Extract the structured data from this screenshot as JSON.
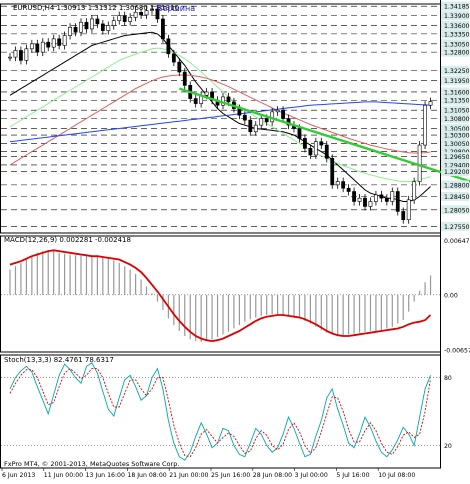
{
  "symbol_header": "EURUSD,H4 1.30913 1.31312 1.30680 1.31310",
  "peak_annotation": "Вершина",
  "copyright": "FxPro MT4, © 2001-2013, MetaQuotes Software Corp.",
  "colors": {
    "grid": "#000000",
    "candle": "#000000",
    "ma_black": "#000000",
    "ma_green": "#90ee90",
    "ma_red": "#e06060",
    "ma_blue": "#2244ff",
    "trendline": "#33cc33",
    "macd_signal": "#dd0000",
    "macd_hist": "#999999",
    "stoch_main": "#00aaaa",
    "stoch_signal": "#dd0000",
    "price_box_bg": "#d8ecec",
    "peak_text": "#2222cc"
  },
  "chart_data": [
    {
      "type": "candlestick",
      "title": "EURUSD,H4 1.30913 1.31312 1.30680 1.31310",
      "ylim": [
        1.2735,
        1.3425
      ],
      "price_labels": [
        "1.34185",
        "1.33900",
        "1.33600",
        "1.33350",
        "1.33050",
        "1.32800",
        "1.32250",
        "1.31950",
        "1.31600",
        "1.31350",
        "1.31050",
        "1.30800",
        "1.30500",
        "1.30300",
        "1.30050",
        "1.29800",
        "1.29650",
        "1.29400",
        "1.29200",
        "1.28800",
        "1.28450",
        "1.28050",
        "1.27550"
      ],
      "x_labels": [
        "6 Jun 2013",
        "11 Jun 00:00",
        "13 Jun 16:00",
        "18 Jun 08:00",
        "21 Jun 00:00",
        "25 Jun 16:00",
        "28 Jun 08:00",
        "3 Jul 00:00",
        "5 Jul 16:00",
        "10 Jul 08:00"
      ],
      "close": [
        1.3265,
        1.3285,
        1.3255,
        1.329,
        1.3305,
        1.328,
        1.331,
        1.3295,
        1.332,
        1.33,
        1.333,
        1.3355,
        1.334,
        1.337,
        1.335,
        1.338,
        1.3365,
        1.3345,
        1.336,
        1.3375,
        1.339,
        1.3372,
        1.3385,
        1.34,
        1.3392,
        1.3405,
        1.341,
        1.338,
        1.332,
        1.3275,
        1.325,
        1.322,
        1.318,
        1.314,
        1.3125,
        1.315,
        1.316,
        1.3135,
        1.312,
        1.3145,
        1.313,
        1.311,
        1.309,
        1.3075,
        1.304,
        1.306,
        1.308,
        1.307,
        1.31,
        1.3105,
        1.308,
        1.306,
        1.305,
        1.302,
        1.299,
        1.297,
        1.301,
        1.3,
        1.296,
        1.288,
        1.289,
        1.287,
        1.286,
        1.283,
        1.284,
        1.2815,
        1.283,
        1.285,
        1.284,
        1.283,
        1.286,
        1.28,
        1.2775,
        1.2835,
        1.289,
        1.3,
        1.312,
        1.3131
      ],
      "series": [
        {
          "name": "MA",
          "values": [
            1.315,
            1.316,
            1.317,
            1.318,
            1.319,
            1.32,
            1.321,
            1.322,
            1.323,
            1.324,
            1.325,
            1.326,
            1.327,
            1.328,
            1.329,
            1.33,
            1.3305,
            1.331,
            1.3315,
            1.332,
            1.3325,
            1.333,
            1.3332,
            1.3334,
            1.3336,
            1.3338,
            1.334,
            1.3335,
            1.332,
            1.33,
            1.328,
            1.326,
            1.324,
            1.3215,
            1.319,
            1.317,
            1.315,
            1.313,
            1.311,
            1.3095,
            1.3085,
            1.3075,
            1.3065,
            1.306,
            1.3055,
            1.305,
            1.3048,
            1.3046,
            1.3044,
            1.3042,
            1.304,
            1.3035,
            1.303,
            1.302,
            1.301,
            1.3,
            1.299,
            1.298,
            1.297,
            1.2955,
            1.294,
            1.2925,
            1.291,
            1.2895,
            1.288,
            1.2865,
            1.2855,
            1.285,
            1.2845,
            1.284,
            1.284,
            1.2835,
            1.283,
            1.283,
            1.2835,
            1.2845,
            1.286,
            1.2875
          ]
        },
        {
          "name": "MA",
          "values": [
            1.3055,
            1.3065,
            1.3075,
            1.3085,
            1.3095,
            1.3105,
            1.3115,
            1.3125,
            1.3135,
            1.3145,
            1.3155,
            1.3165,
            1.3175,
            1.3185,
            1.3195,
            1.3205,
            1.3215,
            1.3225,
            1.3235,
            1.3245,
            1.3255,
            1.3262,
            1.3268,
            1.3274,
            1.328,
            1.3285,
            1.329,
            1.3292,
            1.329,
            1.3285,
            1.3278,
            1.327,
            1.326,
            1.3248,
            1.3235,
            1.322,
            1.3205,
            1.319,
            1.3175,
            1.316,
            1.3145,
            1.313,
            1.3118,
            1.3105,
            1.3095,
            1.3085,
            1.3075,
            1.3065,
            1.3055,
            1.3045,
            1.3035,
            1.3025,
            1.3015,
            1.3005,
            1.2995,
            1.2985,
            1.2975,
            1.2968,
            1.296,
            1.2952,
            1.2945,
            1.2938,
            1.2932,
            1.2926,
            1.292,
            1.2915,
            1.291,
            1.2906,
            1.2902,
            1.2898,
            1.2895,
            1.2892,
            1.289,
            1.289,
            1.2892,
            1.2896,
            1.29,
            1.2905
          ]
        },
        {
          "name": "MA",
          "values": [
            1.294,
            1.295,
            1.296,
            1.297,
            1.298,
            1.299,
            1.3,
            1.301,
            1.302,
            1.303,
            1.304,
            1.305,
            1.306,
            1.307,
            1.308,
            1.309,
            1.31,
            1.311,
            1.312,
            1.313,
            1.314,
            1.315,
            1.316,
            1.317,
            1.3178,
            1.3186,
            1.3194,
            1.32,
            1.3205,
            1.3208,
            1.321,
            1.3211,
            1.3211,
            1.321,
            1.3208,
            1.3205,
            1.3201,
            1.3196,
            1.319,
            1.3183,
            1.3176,
            1.3168,
            1.316,
            1.3152,
            1.3144,
            1.3136,
            1.3128,
            1.312,
            1.3112,
            1.3104,
            1.3097,
            1.309,
            1.3083,
            1.3076,
            1.3069,
            1.3062,
            1.3056,
            1.305,
            1.3044,
            1.3038,
            1.3032,
            1.3026,
            1.302,
            1.3015,
            1.301,
            1.3005,
            1.3,
            1.2996,
            1.2992,
            1.2988,
            1.2985,
            1.2982,
            1.2979,
            1.2977,
            1.2976,
            1.2976,
            1.2977,
            1.2979
          ]
        },
        {
          "name": "MA",
          "values": [
            1.301,
            1.3012,
            1.3014,
            1.3016,
            1.3018,
            1.302,
            1.3022,
            1.3024,
            1.3026,
            1.3028,
            1.303,
            1.3032,
            1.3034,
            1.3036,
            1.3038,
            1.304,
            1.3042,
            1.3044,
            1.3046,
            1.3048,
            1.305,
            1.3052,
            1.3054,
            1.3056,
            1.3058,
            1.306,
            1.3062,
            1.3064,
            1.3066,
            1.3068,
            1.307,
            1.3072,
            1.3074,
            1.3076,
            1.3078,
            1.308,
            1.3082,
            1.3084,
            1.3086,
            1.3088,
            1.309,
            1.3092,
            1.3094,
            1.3096,
            1.3098,
            1.31,
            1.3102,
            1.3104,
            1.3106,
            1.3108,
            1.311,
            1.3112,
            1.3114,
            1.3116,
            1.3118,
            1.312,
            1.3121,
            1.3122,
            1.3123,
            1.3124,
            1.3125,
            1.3126,
            1.3127,
            1.3128,
            1.3129,
            1.313,
            1.313,
            1.313,
            1.3129,
            1.3128,
            1.3127,
            1.3126,
            1.3125,
            1.3124,
            1.3123,
            1.3122,
            1.3121,
            1.312
          ]
        }
      ],
      "trendline": {
        "from": [
          31,
          1.317
        ],
        "to": [
          77,
          1.293
        ]
      }
    },
    {
      "type": "bar",
      "title": "MACD(12,26,9) 0.002281 -0.002418",
      "ylim": [
        -0.0068,
        0.007
      ],
      "y_labels": [
        "0.00647",
        "0.00",
        "-0.00657"
      ],
      "values": [
        0.003,
        0.0034,
        0.0038,
        0.0042,
        0.0046,
        0.005,
        0.0052,
        0.0053,
        0.0052,
        0.005,
        0.0049,
        0.0048,
        0.0047,
        0.0047,
        0.0046,
        0.0046,
        0.0045,
        0.0044,
        0.0043,
        0.0041,
        0.0038,
        0.0034,
        0.003,
        0.0025,
        0.0018,
        0.001,
        0.0002,
        -0.0008,
        -0.0018,
        -0.0028,
        -0.0036,
        -0.0043,
        -0.0049,
        -0.0053,
        -0.0055,
        -0.0056,
        -0.0055,
        -0.0053,
        -0.005,
        -0.0047,
        -0.0044,
        -0.004,
        -0.0036,
        -0.0032,
        -0.0029,
        -0.0027,
        -0.0025,
        -0.0024,
        -0.0023,
        -0.0023,
        -0.0024,
        -0.0025,
        -0.0026,
        -0.0028,
        -0.0031,
        -0.0034,
        -0.0038,
        -0.0042,
        -0.0045,
        -0.0047,
        -0.0048,
        -0.0048,
        -0.0047,
        -0.0046,
        -0.0045,
        -0.0044,
        -0.0043,
        -0.0043,
        -0.0042,
        -0.004,
        -0.0038,
        -0.0034,
        -0.003,
        -0.002,
        -0.0008,
        0.0005,
        0.0015,
        0.0023
      ],
      "series": [
        {
          "name": "Signal",
          "values": [
            0.0036,
            0.0038,
            0.004,
            0.0043,
            0.0046,
            0.0048,
            0.005,
            0.0052,
            0.0053,
            0.0052,
            0.0051,
            0.005,
            0.0049,
            0.0048,
            0.0047,
            0.0046,
            0.0046,
            0.0045,
            0.0044,
            0.0043,
            0.0042,
            0.0039,
            0.0036,
            0.0032,
            0.0027,
            0.002,
            0.0012,
            0.0004,
            -0.0005,
            -0.0014,
            -0.0023,
            -0.0031,
            -0.0038,
            -0.0044,
            -0.0049,
            -0.0052,
            -0.0054,
            -0.0055,
            -0.0054,
            -0.0052,
            -0.0049,
            -0.0046,
            -0.0043,
            -0.0039,
            -0.0035,
            -0.0031,
            -0.0028,
            -0.0026,
            -0.0025,
            -0.0024,
            -0.0024,
            -0.0025,
            -0.0026,
            -0.0027,
            -0.0029,
            -0.0032,
            -0.0035,
            -0.0039,
            -0.0043,
            -0.0046,
            -0.0048,
            -0.0049,
            -0.0049,
            -0.0048,
            -0.0047,
            -0.0046,
            -0.0045,
            -0.0044,
            -0.0043,
            -0.0042,
            -0.0041,
            -0.004,
            -0.0038,
            -0.0035,
            -0.0033,
            -0.0032,
            -0.003,
            -0.0024
          ]
        }
      ]
    },
    {
      "type": "line",
      "title": "Stoch(13,3,3) 82.4761 78.6317",
      "ylim": [
        0,
        100
      ],
      "y_labels": [
        "80",
        "20"
      ],
      "series": [
        {
          "name": "Main",
          "values": [
            70,
            80,
            86,
            90,
            85,
            72,
            60,
            48,
            65,
            82,
            92,
            87,
            80,
            75,
            90,
            93,
            84,
            68,
            52,
            46,
            62,
            78,
            82,
            72,
            60,
            64,
            80,
            88,
            70,
            42,
            22,
            10,
            7,
            14,
            28,
            40,
            30,
            18,
            22,
            35,
            33,
            20,
            12,
            10,
            22,
            35,
            30,
            20,
            14,
            18,
            30,
            45,
            35,
            22,
            10,
            12,
            28,
            42,
            62,
            70,
            52,
            38,
            22,
            18,
            30,
            45,
            36,
            24,
            14,
            10,
            16,
            25,
            36,
            30,
            20,
            45,
            70,
            82
          ]
        },
        {
          "name": "Signal",
          "values": [
            66,
            75,
            82,
            87,
            87,
            80,
            68,
            56,
            58,
            72,
            84,
            88,
            84,
            79,
            82,
            88,
            88,
            80,
            66,
            54,
            54,
            66,
            78,
            78,
            70,
            64,
            70,
            80,
            80,
            60,
            38,
            22,
            11,
            10,
            18,
            30,
            34,
            28,
            22,
            27,
            31,
            28,
            20,
            13,
            15,
            26,
            33,
            29,
            20,
            16,
            21,
            34,
            40,
            32,
            20,
            13,
            18,
            32,
            48,
            63,
            62,
            50,
            34,
            23,
            23,
            33,
            40,
            33,
            22,
            14,
            12,
            19,
            29,
            32,
            27,
            30,
            50,
            79
          ]
        }
      ]
    }
  ]
}
